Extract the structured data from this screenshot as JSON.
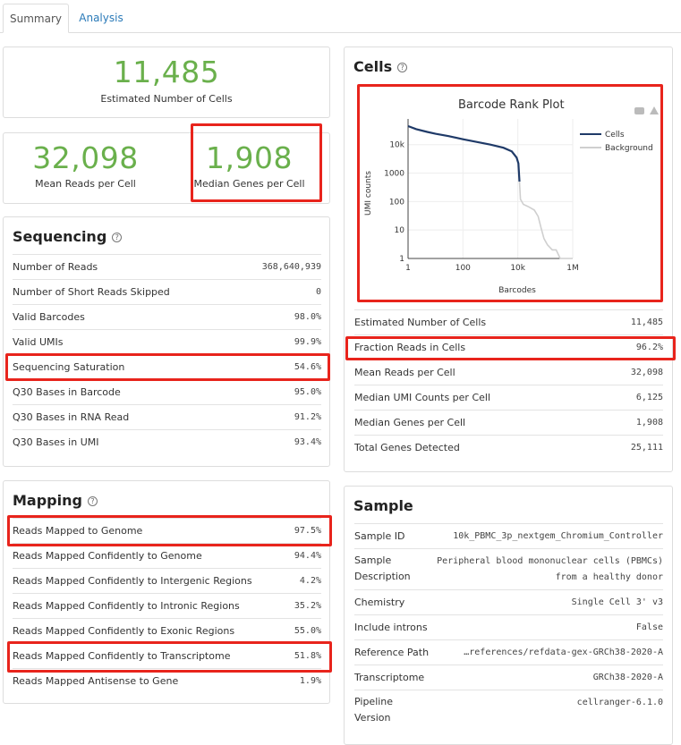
{
  "tabs": [
    {
      "label": "Summary"
    },
    {
      "label": "Analysis"
    }
  ],
  "estimated_cells": {
    "value": "11,485",
    "label": "Estimated Number of Cells"
  },
  "mean_reads": {
    "value": "32,098",
    "label": "Mean Reads per Cell"
  },
  "median_genes": {
    "value": "1,908",
    "label": "Median Genes per Cell"
  },
  "sequencing": {
    "title": "Sequencing",
    "rows": [
      {
        "label": "Number of Reads",
        "value": "368,640,939"
      },
      {
        "label": "Number of Short Reads Skipped",
        "value": "0"
      },
      {
        "label": "Valid Barcodes",
        "value": "98.0%"
      },
      {
        "label": "Valid UMIs",
        "value": "99.9%"
      },
      {
        "label": "Sequencing Saturation",
        "value": "54.6%"
      },
      {
        "label": "Q30 Bases in Barcode",
        "value": "95.0%"
      },
      {
        "label": "Q30 Bases in RNA Read",
        "value": "91.2%"
      },
      {
        "label": "Q30 Bases in UMI",
        "value": "93.4%"
      }
    ]
  },
  "mapping": {
    "title": "Mapping",
    "rows": [
      {
        "label": "Reads Mapped to Genome",
        "value": "97.5%"
      },
      {
        "label": "Reads Mapped Confidently to Genome",
        "value": "94.4%"
      },
      {
        "label": "Reads Mapped Confidently to Intergenic Regions",
        "value": "4.2%"
      },
      {
        "label": "Reads Mapped Confidently to Intronic Regions",
        "value": "35.2%"
      },
      {
        "label": "Reads Mapped Confidently to Exonic Regions",
        "value": "55.0%"
      },
      {
        "label": "Reads Mapped Confidently to Transcriptome",
        "value": "51.8%"
      },
      {
        "label": "Reads Mapped Antisense to Gene",
        "value": "1.9%"
      }
    ]
  },
  "cells": {
    "title": "Cells",
    "rows": [
      {
        "label": "Estimated Number of Cells",
        "value": "11,485"
      },
      {
        "label": "Fraction Reads in Cells",
        "value": "96.2%"
      },
      {
        "label": "Mean Reads per Cell",
        "value": "32,098"
      },
      {
        "label": "Median UMI Counts per Cell",
        "value": "6,125"
      },
      {
        "label": "Median Genes per Cell",
        "value": "1,908"
      },
      {
        "label": "Total Genes Detected",
        "value": "25,111"
      }
    ]
  },
  "sample": {
    "title": "Sample",
    "rows": [
      {
        "label": "Sample ID",
        "value": "10k_PBMC_3p_nextgem_Chromium_Controller"
      },
      {
        "label": "Sample",
        "label2": "Description",
        "value": "Peripheral blood mononuclear cells (PBMCs)",
        "value2": "from a healthy donor"
      },
      {
        "label": "Chemistry",
        "value": "Single Cell 3' v3"
      },
      {
        "label": "Include introns",
        "value": "False"
      },
      {
        "label": "Reference Path",
        "value": "…references/refdata-gex-GRCh38-2020-A"
      },
      {
        "label": "Transcriptome",
        "value": "GRCh38-2020-A"
      },
      {
        "label": "Pipeline",
        "label2": "Version",
        "value": "cellranger-6.1.0"
      }
    ]
  },
  "toolbar_icons": [
    "camera-icon",
    "home-icon"
  ],
  "colors": {
    "accent_green": "#6ab04c",
    "highlight_red": "#e8241c",
    "cells_line": "#1f3a68",
    "background_line": "#cfcfcf",
    "link_blue": "#2a7ab8"
  },
  "chart_data": {
    "type": "line",
    "title": "Barcode Rank Plot",
    "xlabel": "Barcodes",
    "ylabel": "UMI counts",
    "x_scale": "log",
    "y_scale": "log",
    "xlim": [
      1,
      1000000
    ],
    "ylim": [
      1,
      80000
    ],
    "x_ticks": [
      {
        "v": 1,
        "label": "1"
      },
      {
        "v": 100,
        "label": "100"
      },
      {
        "v": 10000,
        "label": "10k"
      },
      {
        "v": 1000000,
        "label": "1M"
      }
    ],
    "y_ticks": [
      {
        "v": 1,
        "label": "1"
      },
      {
        "v": 10,
        "label": "10"
      },
      {
        "v": 100,
        "label": "100"
      },
      {
        "v": 1000,
        "label": "1000"
      },
      {
        "v": 10000,
        "label": "10k"
      }
    ],
    "legend_position": "top-right",
    "grid": true,
    "series": [
      {
        "name": "Cells",
        "color": "#1f3a68",
        "points": [
          [
            1,
            45000
          ],
          [
            2,
            35000
          ],
          [
            5,
            28000
          ],
          [
            10,
            24000
          ],
          [
            30,
            20000
          ],
          [
            100,
            15500
          ],
          [
            300,
            12500
          ],
          [
            1000,
            10000
          ],
          [
            3000,
            7800
          ],
          [
            6000,
            5800
          ],
          [
            9000,
            3500
          ],
          [
            10500,
            2200
          ],
          [
            11485,
            500
          ]
        ]
      },
      {
        "name": "Background",
        "color": "#cfcfcf",
        "points": [
          [
            11485,
            500
          ],
          [
            12500,
            120
          ],
          [
            16000,
            80
          ],
          [
            25000,
            65
          ],
          [
            40000,
            50
          ],
          [
            55000,
            30
          ],
          [
            70000,
            12
          ],
          [
            90000,
            5
          ],
          [
            120000,
            3
          ],
          [
            180000,
            2
          ],
          [
            250000,
            2
          ],
          [
            350000,
            1
          ],
          [
            1000000,
            1
          ]
        ]
      }
    ]
  }
}
